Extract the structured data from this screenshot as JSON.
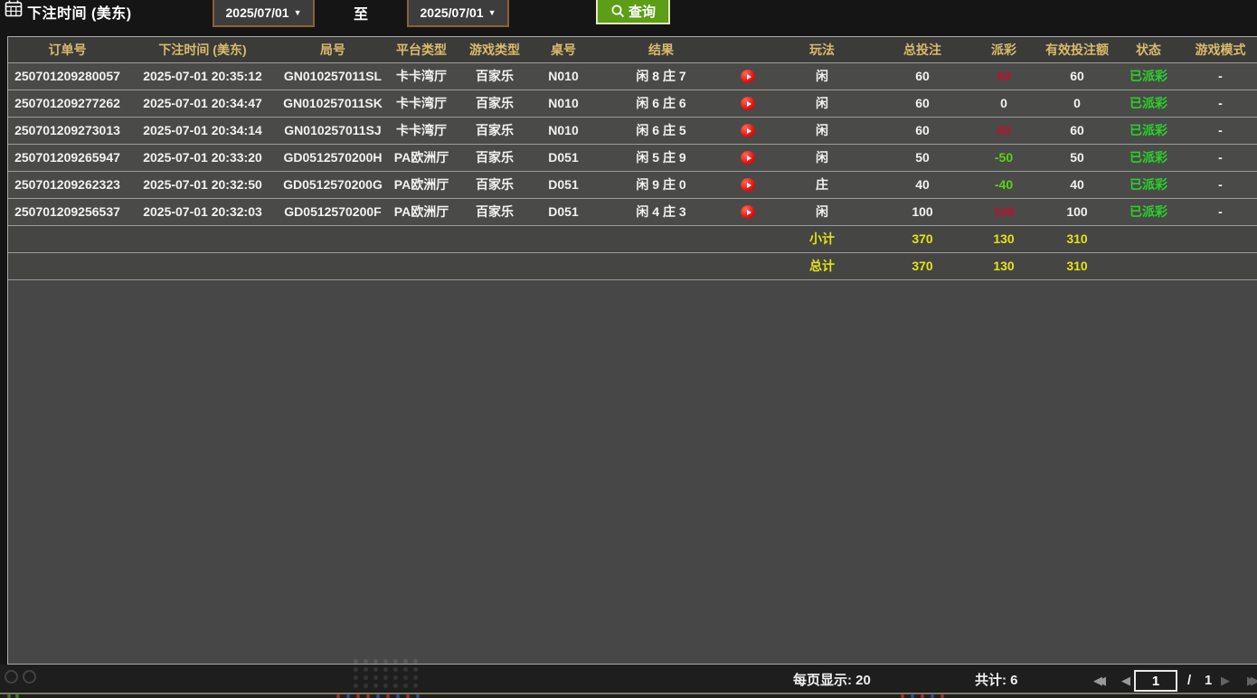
{
  "toolbar": {
    "label": "下注时间 (美东)",
    "date_from": "2025/07/01",
    "to_label": "至",
    "date_to": "2025/07/01",
    "search_label": "查询"
  },
  "table": {
    "columns": [
      "订单号",
      "下注时间 (美东)",
      "局号",
      "平台类型",
      "游戏类型",
      "桌号",
      "结果",
      "",
      "玩法",
      "总投注",
      "派彩",
      "有效投注额",
      "状态",
      "游戏模式"
    ],
    "rows": [
      {
        "order_id": "250701209280057",
        "bet_time": "2025-07-01 20:35:12",
        "round_id": "GN010257011SL",
        "platform": "卡卡湾厅",
        "game_type": "百家乐",
        "table_id": "N010",
        "result": "闲 8 庄 7",
        "play": "闲",
        "total_bet": "60",
        "payout": "60",
        "payout_color": "red",
        "valid_bet": "60",
        "status": "已派彩",
        "mode": "-"
      },
      {
        "order_id": "250701209277262",
        "bet_time": "2025-07-01 20:34:47",
        "round_id": "GN010257011SK",
        "platform": "卡卡湾厅",
        "game_type": "百家乐",
        "table_id": "N010",
        "result": "闲 6 庄 6",
        "play": "闲",
        "total_bet": "60",
        "payout": "0",
        "payout_color": "white",
        "valid_bet": "0",
        "status": "已派彩",
        "mode": "-"
      },
      {
        "order_id": "250701209273013",
        "bet_time": "2025-07-01 20:34:14",
        "round_id": "GN010257011SJ",
        "platform": "卡卡湾厅",
        "game_type": "百家乐",
        "table_id": "N010",
        "result": "闲 6 庄 5",
        "play": "闲",
        "total_bet": "60",
        "payout": "60",
        "payout_color": "red",
        "valid_bet": "60",
        "status": "已派彩",
        "mode": "-"
      },
      {
        "order_id": "250701209265947",
        "bet_time": "2025-07-01 20:33:20",
        "round_id": "GD0512570200H",
        "platform": "PA欧洲厅",
        "game_type": "百家乐",
        "table_id": "D051",
        "result": "闲 5 庄 9",
        "play": "闲",
        "total_bet": "50",
        "payout": "-50",
        "payout_color": "green",
        "valid_bet": "50",
        "status": "已派彩",
        "mode": "-"
      },
      {
        "order_id": "250701209262323",
        "bet_time": "2025-07-01 20:32:50",
        "round_id": "GD0512570200G",
        "platform": "PA欧洲厅",
        "game_type": "百家乐",
        "table_id": "D051",
        "result": "闲 9 庄 0",
        "play": "庄",
        "total_bet": "40",
        "payout": "-40",
        "payout_color": "green",
        "valid_bet": "40",
        "status": "已派彩",
        "mode": "-"
      },
      {
        "order_id": "250701209256537",
        "bet_time": "2025-07-01 20:32:03",
        "round_id": "GD0512570200F",
        "platform": "PA欧洲厅",
        "game_type": "百家乐",
        "table_id": "D051",
        "result": "闲 4 庄 3",
        "play": "闲",
        "total_bet": "100",
        "payout": "100",
        "payout_color": "red",
        "valid_bet": "100",
        "status": "已派彩",
        "mode": "-"
      }
    ],
    "subtotal": {
      "label": "小计",
      "total_bet": "370",
      "payout": "130",
      "valid_bet": "310"
    },
    "total": {
      "label": "总计",
      "total_bet": "370",
      "payout": "130",
      "valid_bet": "310"
    }
  },
  "footer": {
    "per_page": "每页显示: 20",
    "total_count": "共计: 6",
    "page_current": "1",
    "page_separator": "/",
    "page_total": "1"
  },
  "colors": {
    "query_button_green": "#5c9e16",
    "date_select_border": "#8a6136",
    "header_text_gold": "#d9ba6c",
    "header_bg": "#3b3b39",
    "row_bg": "#4a4a48",
    "panel_bg": "#474747",
    "win_red": "#c01030",
    "loss_green": "#55d511",
    "status_green": "#2ad12a",
    "summary_yellow": "#e3e316",
    "replay_red": "#e31212"
  }
}
